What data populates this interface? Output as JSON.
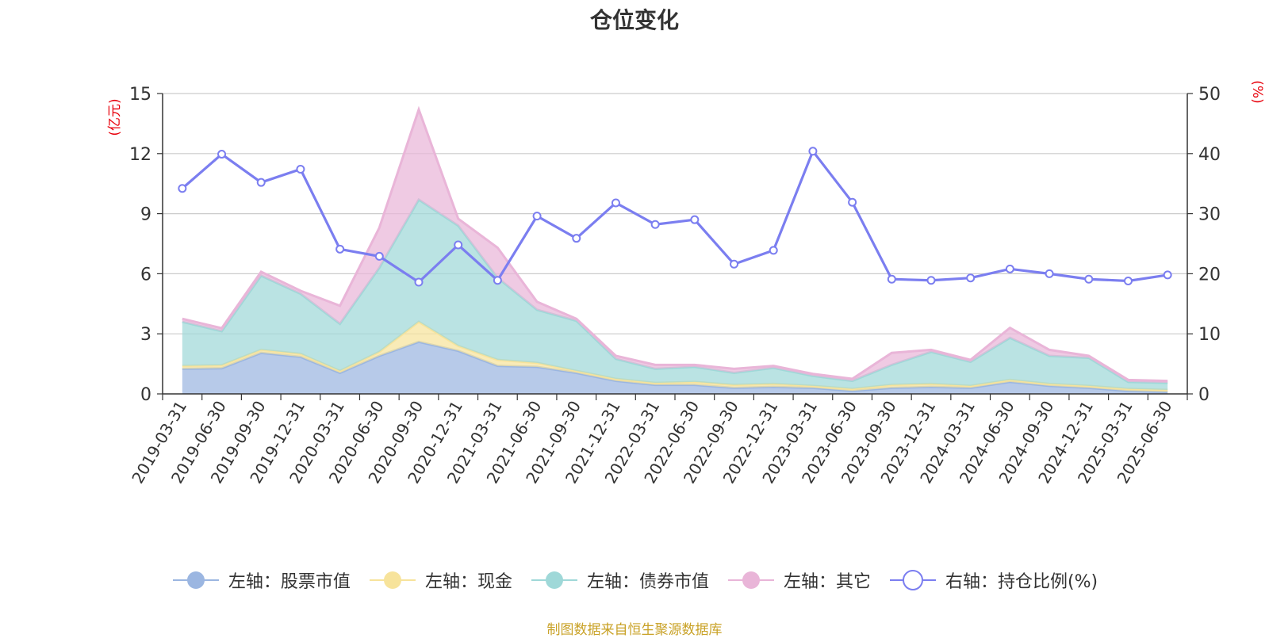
{
  "chart_data": {
    "type": "area",
    "title": "仓位变化",
    "left_axis_unit": "(亿元)",
    "right_axis_unit": "(%)",
    "left_ylim": [
      0,
      15
    ],
    "left_ticks": [
      0,
      3,
      6,
      9,
      12,
      15
    ],
    "right_ylim": [
      0,
      50
    ],
    "right_ticks": [
      0,
      10,
      20,
      30,
      40,
      50
    ],
    "grid": true,
    "legend_position": "bottom",
    "categories": [
      "2019-03-31",
      "2019-06-30",
      "2019-09-30",
      "2019-12-31",
      "2020-03-31",
      "2020-06-30",
      "2020-09-30",
      "2020-12-31",
      "2021-03-31",
      "2021-06-30",
      "2021-09-30",
      "2021-12-31",
      "2022-03-31",
      "2022-06-30",
      "2022-09-30",
      "2022-12-31",
      "2023-03-31",
      "2023-06-30",
      "2023-09-30",
      "2023-12-31",
      "2024-03-31",
      "2024-06-30",
      "2024-09-30",
      "2024-12-31",
      "2025-03-31",
      "2025-06-30"
    ],
    "series": [
      {
        "name": "左轴：股票市值",
        "axis": "left",
        "stack": true,
        "color": "#9bb6e1",
        "values": [
          1.25,
          1.28,
          2.05,
          1.85,
          1.05,
          1.9,
          2.6,
          2.15,
          1.4,
          1.35,
          1.05,
          0.65,
          0.45,
          0.45,
          0.3,
          0.35,
          0.3,
          0.15,
          0.3,
          0.35,
          0.3,
          0.6,
          0.4,
          0.3,
          0.15,
          0.1
        ]
      },
      {
        "name": "左轴：现金",
        "axis": "left",
        "stack": true,
        "color": "#f7e39b",
        "values": [
          0.15,
          0.15,
          0.15,
          0.15,
          0.1,
          0.2,
          1.0,
          0.25,
          0.3,
          0.2,
          0.1,
          0.1,
          0.1,
          0.15,
          0.15,
          0.15,
          0.1,
          0.1,
          0.15,
          0.15,
          0.1,
          0.1,
          0.1,
          0.1,
          0.1,
          0.1
        ]
      },
      {
        "name": "左轴：债券市值",
        "axis": "left",
        "stack": true,
        "color": "#9fd8d8",
        "values": [
          2.2,
          1.7,
          3.7,
          3.0,
          2.35,
          4.2,
          6.1,
          6.0,
          4.1,
          2.65,
          2.5,
          1.0,
          0.7,
          0.75,
          0.6,
          0.8,
          0.5,
          0.4,
          1.0,
          1.6,
          1.2,
          2.1,
          1.4,
          1.4,
          0.35,
          0.35
        ]
      },
      {
        "name": "左轴：其它",
        "axis": "left",
        "stack": true,
        "color": "#e9b5d8",
        "values": [
          0.15,
          0.15,
          0.2,
          0.15,
          0.9,
          2.0,
          4.5,
          0.35,
          1.5,
          0.4,
          0.1,
          0.15,
          0.2,
          0.1,
          0.2,
          0.1,
          0.1,
          0.1,
          0.6,
          0.1,
          0.1,
          0.5,
          0.3,
          0.1,
          0.1,
          0.1
        ]
      },
      {
        "name": "右轴：持仓比例(%)",
        "axis": "right",
        "stack": false,
        "color": "#7b7ef0",
        "values": [
          34.2,
          39.9,
          35.2,
          37.4,
          24.1,
          22.9,
          18.6,
          24.8,
          18.9,
          29.6,
          25.9,
          31.8,
          28.2,
          29.0,
          21.6,
          23.9,
          40.4,
          31.9,
          19.1,
          18.9,
          19.3,
          20.8,
          20.0,
          19.1,
          18.8,
          19.8
        ]
      }
    ]
  },
  "footer": {
    "source_note": "制图数据来自恒生聚源数据库"
  }
}
